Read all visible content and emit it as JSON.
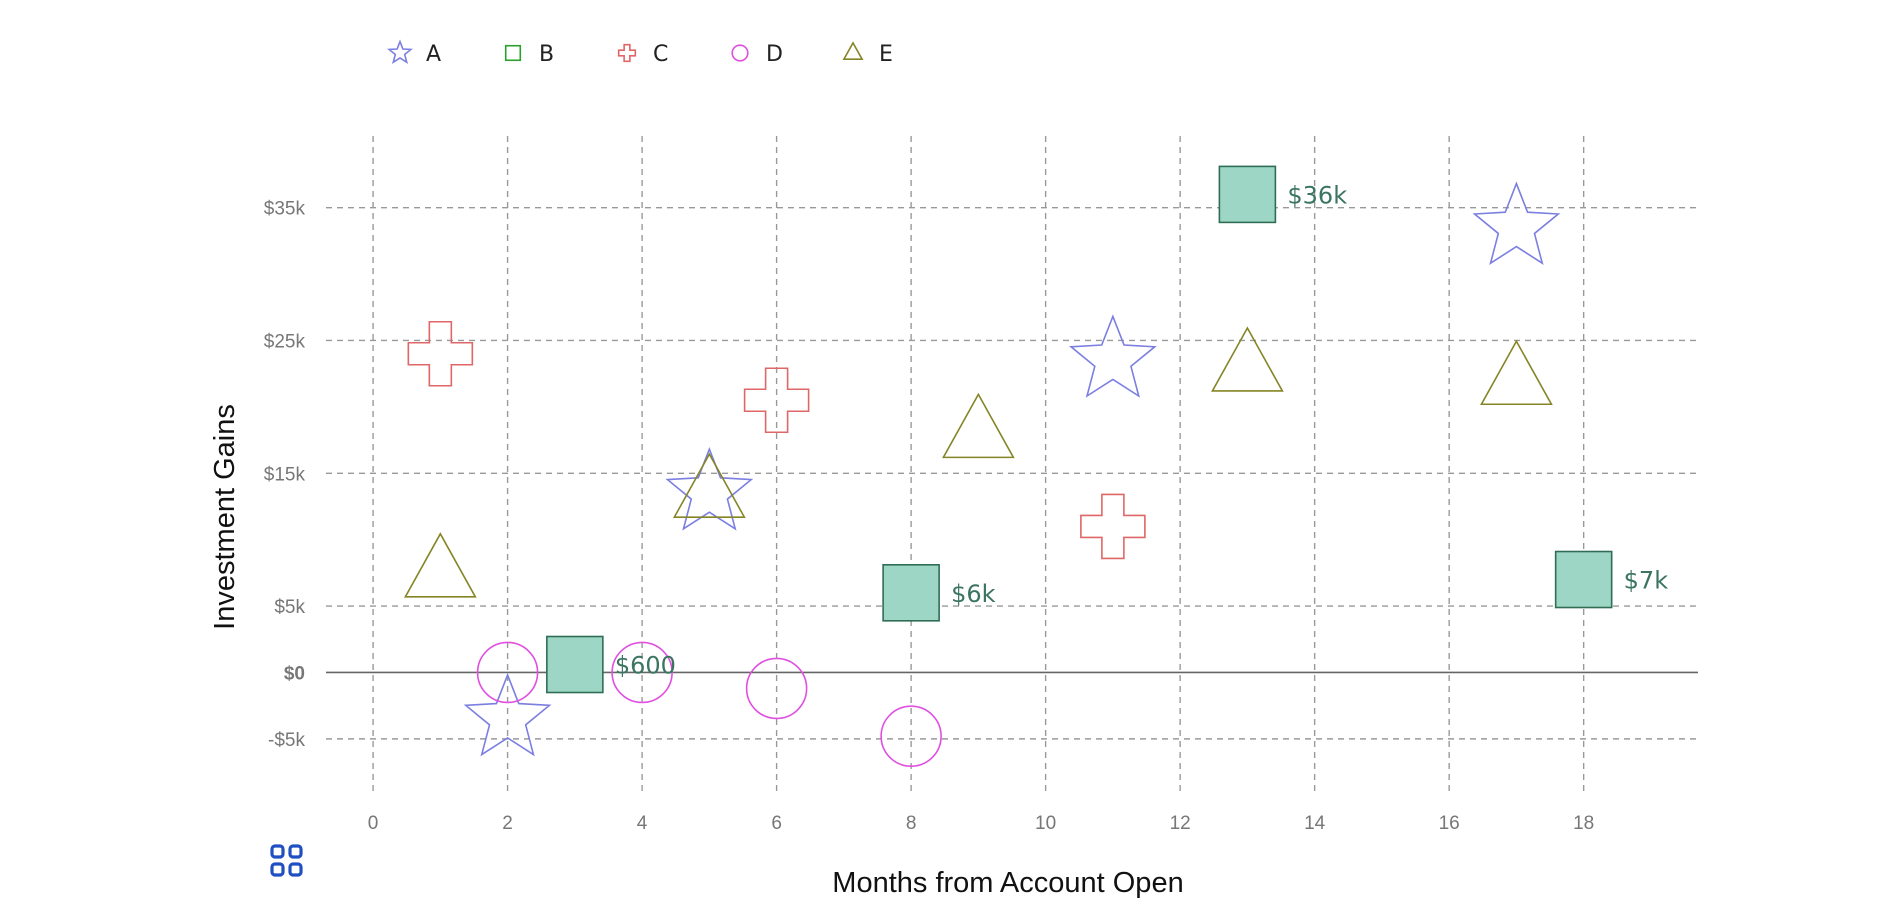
{
  "chart_data": {
    "type": "scatter",
    "xlabel": "Months from Account Open",
    "ylabel": "Investment Gains",
    "xlim": [
      -0.7,
      19.7
    ],
    "ylim": [
      -9000,
      41000
    ],
    "x_ticks": [
      0,
      2,
      4,
      6,
      8,
      10,
      12,
      14,
      16,
      18
    ],
    "x_tick_labels": [
      "0",
      "2",
      "4",
      "6",
      "8",
      "10",
      "12",
      "14",
      "16",
      "18"
    ],
    "y_ticks": [
      -5000,
      0,
      5000,
      15000,
      25000,
      35000
    ],
    "y_tick_labels": [
      "-$5k",
      "$0",
      "$5k",
      "$15k",
      "$25k",
      "$35k"
    ],
    "grid": true,
    "legend_position": "top-left",
    "series": [
      {
        "name": "A",
        "marker": "star",
        "color": "#7b7fe0",
        "points": [
          {
            "x": 2,
            "y": -3500
          },
          {
            "x": 5,
            "y": 13500
          },
          {
            "x": 11,
            "y": 23500
          },
          {
            "x": 17,
            "y": 33500
          }
        ]
      },
      {
        "name": "B",
        "marker": "square",
        "color": "#2f6d55",
        "fill": "#9dd6c4",
        "legend_color": "#2ca02c",
        "points": [
          {
            "x": 3,
            "y": 600,
            "label": "$600"
          },
          {
            "x": 8,
            "y": 6000,
            "label": "$6k"
          },
          {
            "x": 13,
            "y": 36000,
            "label": "$36k"
          },
          {
            "x": 18,
            "y": 7000,
            "label": "$7k"
          }
        ]
      },
      {
        "name": "C",
        "marker": "cross",
        "color": "#e06767",
        "points": [
          {
            "x": 1,
            "y": 24000
          },
          {
            "x": 6,
            "y": 20500
          },
          {
            "x": 11,
            "y": 11000
          }
        ]
      },
      {
        "name": "D",
        "marker": "circle",
        "color": "#e04fe0",
        "points": [
          {
            "x": 2,
            "y": 0
          },
          {
            "x": 4,
            "y": 0
          },
          {
            "x": 6,
            "y": -1200
          },
          {
            "x": 8,
            "y": -4800
          }
        ]
      },
      {
        "name": "E",
        "marker": "triangle",
        "color": "#858526",
        "points": [
          {
            "x": 1,
            "y": 7500
          },
          {
            "x": 5,
            "y": 13500
          },
          {
            "x": 9,
            "y": 18000
          },
          {
            "x": 13,
            "y": 23000
          },
          {
            "x": 17,
            "y": 22000
          }
        ]
      }
    ]
  },
  "ui": {
    "menu_icon": "grid-menu-icon",
    "menu_icon_color": "#1f4fc2"
  }
}
